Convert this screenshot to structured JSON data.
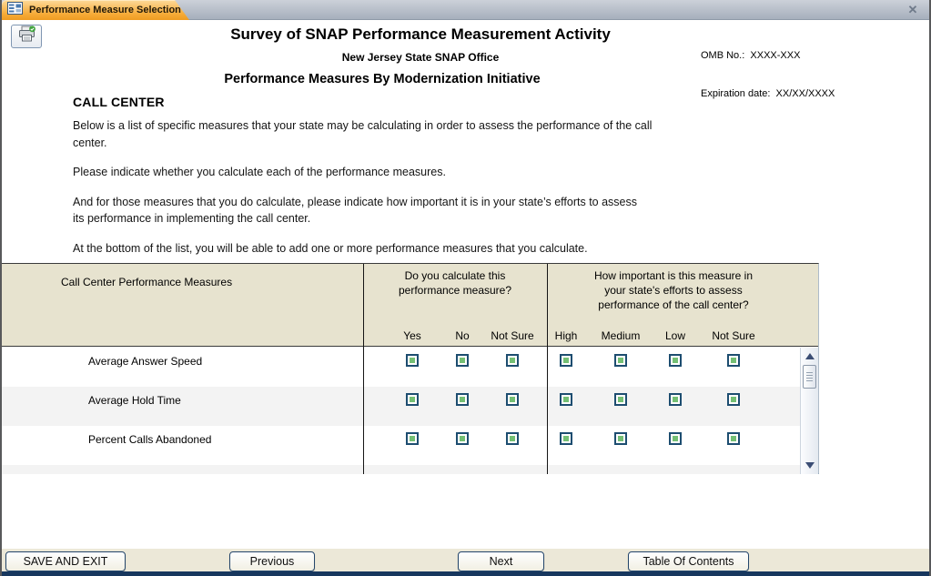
{
  "window": {
    "tab_title": "Performance Measure Selection",
    "close_glyph": "✕"
  },
  "header": {
    "title": "Survey of SNAP Performance Measurement Activity",
    "subtitle": "New Jersey State SNAP Office",
    "page_title": "Performance Measures By Modernization Initiative",
    "omb_line1": "OMB No.:  XXXX-XXX",
    "omb_line2": "Expiration date:  XX/XX/XXXX"
  },
  "section": {
    "heading": "CALL CENTER",
    "paragraphs": [
      "Below is a list of specific measures that your state may be calculating in order to assess the performance of the call\ncenter.",
      "Please indicate whether you calculate each of the performance measures.",
      "And for those measures that you do calculate, please indicate how important it is in your state’s efforts to assess\nits performance in implementing the call center.",
      "At the bottom of the list, you will be able to add one or more performance measures that you calculate."
    ]
  },
  "table": {
    "col1_header": "Call Center Performance Measures",
    "col2_header": "Do you calculate this\nperformance measure?",
    "col3_header": "How important is this measure in\nyour state's efforts to assess\nperformance of the call center?",
    "col2_options": [
      "Yes",
      "No",
      "Not Sure"
    ],
    "col3_options": [
      "High",
      "Medium",
      "Low",
      "Not Sure"
    ],
    "rows": [
      {
        "label": "Average Answer Speed"
      },
      {
        "label": "Average Hold Time"
      },
      {
        "label": "Percent Calls Abandoned"
      }
    ],
    "checkbox_state": "unselected"
  },
  "footer": {
    "buttons": [
      "SAVE AND EXIT",
      "Previous",
      "Next",
      "Table Of Contents"
    ]
  },
  "colors": {
    "tab_orange": "#f6ab38",
    "header_beige": "#e7e3cf",
    "footer_beige": "#ece8d8",
    "checkbox_border": "#1d4d70",
    "checkbox_fill": "#74bf74",
    "navy_strip": "#17375e",
    "row_alt": "#f3f3f3"
  }
}
